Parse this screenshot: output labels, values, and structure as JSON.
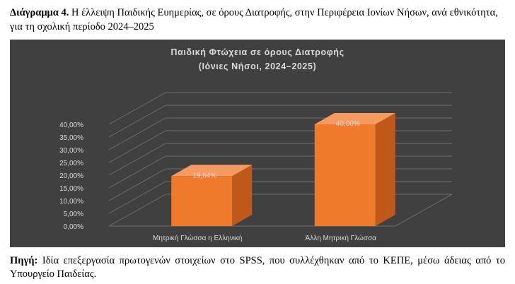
{
  "caption": {
    "lead": "Διάγραμμα 4.",
    "text": " Η έλλειψη Παιδικής Ευημερίας, σε όρους Διατροφής, στην Περιφέρεια Ιονίων Νήσων, ανά εθνικότητα, για τη σχολική περίοδο 2024–2025"
  },
  "source": {
    "lead": "Πηγή:",
    "text": " Ιδία επεξεργασία πρωτογενών στοιχείων στο SPSS, που συλλέχθηκαν από το ΚΕΠΕ, μέσω άδειας από το Υπουργείο Παιδείας."
  },
  "colors": {
    "background": "#404040",
    "bar_front": "#F07A2C",
    "bar_side": "#C0581A",
    "bar_top": "#F59A60",
    "text": "#D9D9D9",
    "grid": "#6E6E6E"
  },
  "chart_data": {
    "type": "bar",
    "title_line1": "Παιδική Φτώχεια σε όρους Διατροφής",
    "title_line2": "(Ιόνιες Νήσοι, 2024–2025)",
    "categories": [
      "Μητρική Γλώσσα η Ελληνική",
      "Άλλη Μητρική Γλώσσα"
    ],
    "values": [
      19.64,
      40.0
    ],
    "data_labels": [
      "19,64%",
      "40,00%"
    ],
    "yticks": [
      "0,00%",
      "5,00%",
      "10,00%",
      "15,00%",
      "20,00%",
      "25,00%",
      "30,00%",
      "35,00%",
      "40,00%"
    ],
    "ylim": [
      0,
      40
    ],
    "grid": true,
    "legend": "none",
    "style": "3d-column"
  }
}
